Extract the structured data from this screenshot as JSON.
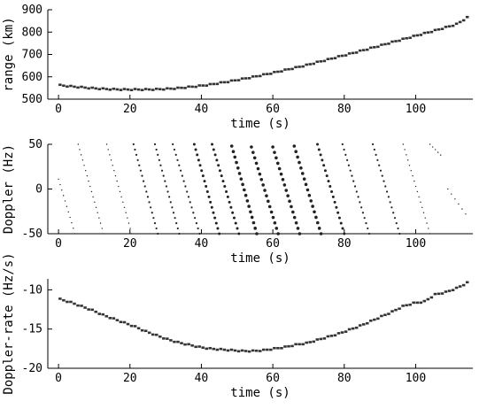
{
  "chart_data": [
    {
      "type": "scatter",
      "title": "",
      "xlabel": "time (s)",
      "ylabel": "range (km)",
      "xlim": [
        -3,
        116
      ],
      "ylim": [
        500,
        900
      ],
      "x_ticks": [
        0,
        20,
        40,
        60,
        80,
        100
      ],
      "y_ticks": [
        500,
        600,
        700,
        800,
        900
      ],
      "grid": false,
      "series": [
        {
          "x": [
            0,
            3,
            6,
            9,
            12,
            15,
            18,
            21,
            24,
            27,
            30,
            33,
            36,
            39,
            42,
            45,
            48,
            51,
            54,
            57,
            60,
            63,
            66,
            69,
            72,
            75,
            78,
            81,
            84,
            87,
            90,
            93,
            96,
            99,
            102,
            105,
            108,
            111,
            114
          ],
          "values": [
            562,
            557,
            553,
            549,
            546,
            544,
            543,
            543,
            543,
            544,
            546,
            549,
            554,
            559,
            565,
            573,
            581,
            590,
            599,
            609,
            619,
            630,
            641,
            652,
            665,
            677,
            690,
            702,
            715,
            728,
            741,
            755,
            768,
            781,
            794,
            807,
            821,
            835,
            865
          ]
        }
      ]
    },
    {
      "type": "scatter",
      "title": "",
      "xlabel": "time (s)",
      "ylabel": "Doppler (Hz)",
      "xlim": [
        -3,
        116
      ],
      "ylim": [
        -50,
        50
      ],
      "x_ticks": [
        0,
        20,
        40,
        60,
        80,
        100
      ],
      "y_ticks": [
        -50,
        0,
        50
      ],
      "grid": false,
      "series": [
        {
          "x": [
            0,
            4.6
          ],
          "values": [
            11,
            -50
          ]
        },
        {
          "x": [
            5.5,
            12.6
          ],
          "values": [
            50,
            -50
          ]
        },
        {
          "x": [
            13.5,
            20.5
          ],
          "values": [
            50,
            -50
          ]
        },
        {
          "x": [
            21,
            27.8
          ],
          "values": [
            50,
            -50
          ]
        },
        {
          "x": [
            27,
            33.8
          ],
          "values": [
            50,
            -50
          ]
        },
        {
          "x": [
            32,
            39.5
          ],
          "values": [
            50,
            -50
          ]
        },
        {
          "x": [
            38,
            45
          ],
          "values": [
            50,
            -50
          ]
        },
        {
          "x": [
            43,
            50.5
          ],
          "values": [
            50,
            -50
          ]
        },
        {
          "x": [
            48.5,
            55.5
          ],
          "values": [
            48,
            -50
          ]
        },
        {
          "x": [
            54,
            61.5
          ],
          "values": [
            47,
            -50
          ]
        },
        {
          "x": [
            60,
            67.5
          ],
          "values": [
            47,
            -50
          ]
        },
        {
          "x": [
            66,
            73.5
          ],
          "values": [
            48,
            -50
          ]
        },
        {
          "x": [
            72.5,
            80
          ],
          "values": [
            50,
            -50
          ]
        },
        {
          "x": [
            79.5,
            87
          ],
          "values": [
            50,
            -50
          ]
        },
        {
          "x": [
            88,
            95.5
          ],
          "values": [
            50,
            -50
          ]
        },
        {
          "x": [
            96.5,
            104
          ],
          "values": [
            50,
            -50
          ]
        },
        {
          "x": [
            104,
            107
          ],
          "values": [
            50,
            38
          ]
        },
        {
          "x": [
            109,
            114
          ],
          "values": [
            0,
            -28
          ]
        }
      ]
    },
    {
      "type": "scatter",
      "title": "",
      "xlabel": "time (s)",
      "ylabel": "Doppler-rate (Hz/s)",
      "xlim": [
        -3,
        116
      ],
      "ylim": [
        -20,
        -8.6
      ],
      "x_ticks": [
        0,
        20,
        40,
        60,
        80,
        100
      ],
      "y_ticks": [
        -20,
        -15,
        -10
      ],
      "grid": false,
      "series": [
        {
          "x": [
            0,
            3,
            6,
            9,
            12,
            15,
            18,
            21,
            24,
            27,
            30,
            33,
            36,
            39,
            42,
            45,
            48,
            51,
            54,
            57,
            60,
            63,
            66,
            69,
            72,
            75,
            78,
            81,
            84,
            87,
            90,
            93,
            96,
            99,
            102,
            105,
            108,
            111,
            114
          ],
          "values": [
            -11.2,
            -11.6,
            -12.1,
            -12.6,
            -13.2,
            -13.7,
            -14.2,
            -14.7,
            -15.3,
            -15.8,
            -16.3,
            -16.7,
            -17.0,
            -17.3,
            -17.5,
            -17.6,
            -17.7,
            -17.8,
            -17.8,
            -17.7,
            -17.5,
            -17.3,
            -17.0,
            -16.8,
            -16.4,
            -16.0,
            -15.6,
            -15.1,
            -14.6,
            -14.0,
            -13.4,
            -12.8,
            -12.1,
            -11.7,
            -11.5,
            -10.6,
            -10.3,
            -9.8,
            -9.1
          ]
        }
      ]
    }
  ]
}
